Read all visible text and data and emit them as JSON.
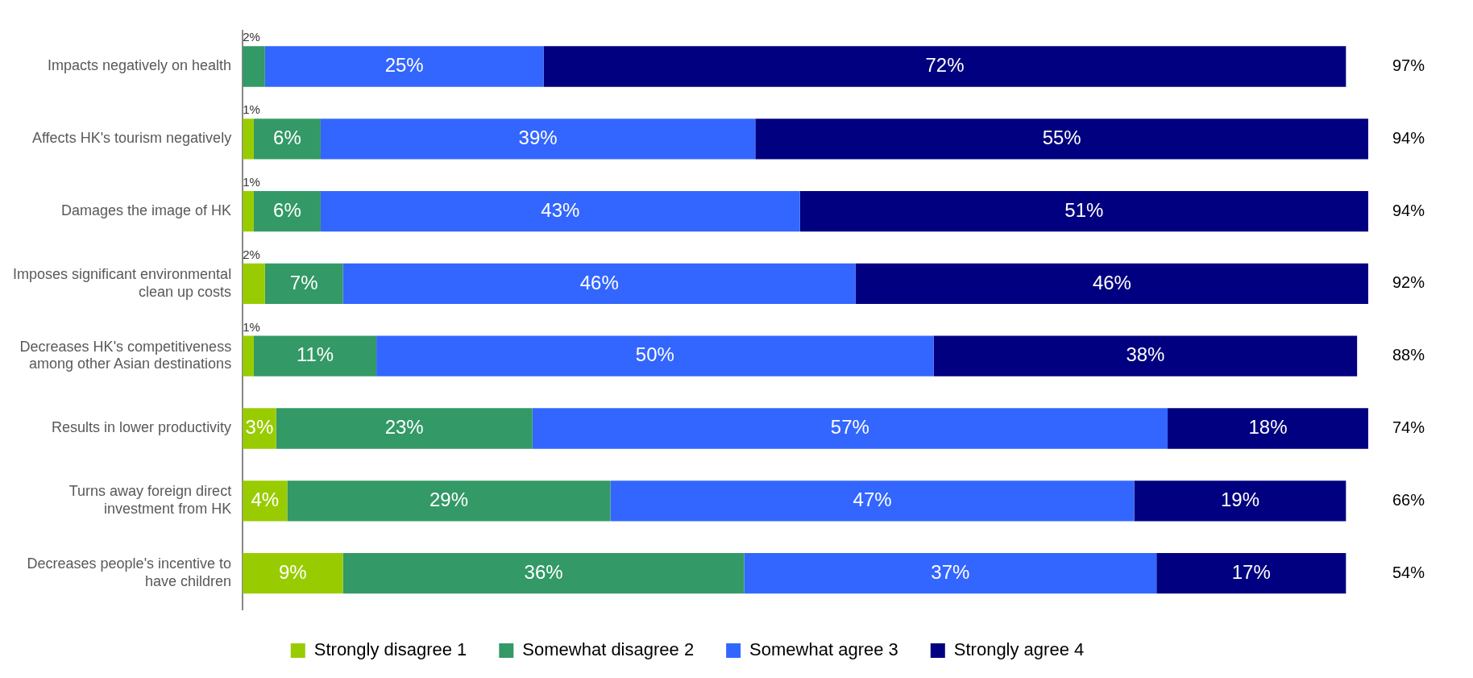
{
  "chart_data": {
    "type": "bar",
    "orientation": "horizontal",
    "stacked": true,
    "legend": "bottom",
    "grid": false,
    "categories": [
      "Impacts negatively on health",
      "Affects HK's tourism negatively",
      "Damages the image of HK",
      "Imposes significant environmental clean up costs",
      "Decreases HK's competitiveness among other Asian destinations",
      "Results in lower productivity",
      "Turns away foreign direct investment from HK",
      "Decreases people's incentive to have children"
    ],
    "series": [
      {
        "name": "Strongly disagree 1",
        "color": "#99cc00",
        "values": [
          null,
          1,
          1,
          2,
          1,
          3,
          4,
          9
        ],
        "value_labels": [
          null,
          "1%",
          "1%",
          "2%",
          "1%",
          "3%",
          "4%",
          "9%"
        ]
      },
      {
        "name": "Somewhat disagree 2",
        "color": "#339966",
        "values": [
          2,
          6,
          6,
          7,
          11,
          23,
          29,
          36
        ],
        "value_labels": [
          "2%",
          "6%",
          "6%",
          "7%",
          "11%",
          "23%",
          "29%",
          "36%"
        ]
      },
      {
        "name": "Somewhat agree 3",
        "color": "#3366ff",
        "values": [
          25,
          39,
          43,
          46,
          50,
          57,
          47,
          37
        ],
        "value_labels": [
          "25%",
          "39%",
          "43%",
          "46%",
          "50%",
          "57%",
          "47%",
          "37%"
        ]
      },
      {
        "name": "Strongly agree 4",
        "color": "#000080",
        "values": [
          72,
          55,
          51,
          46,
          38,
          18,
          19,
          17
        ],
        "value_labels": [
          "72%",
          "55%",
          "51%",
          "46%",
          "38%",
          "18%",
          "19%",
          "17%"
        ]
      }
    ],
    "annotations": [
      "97%",
      "94%",
      "94%",
      "92%",
      "88%",
      "74%",
      "66%",
      "54%"
    ]
  }
}
